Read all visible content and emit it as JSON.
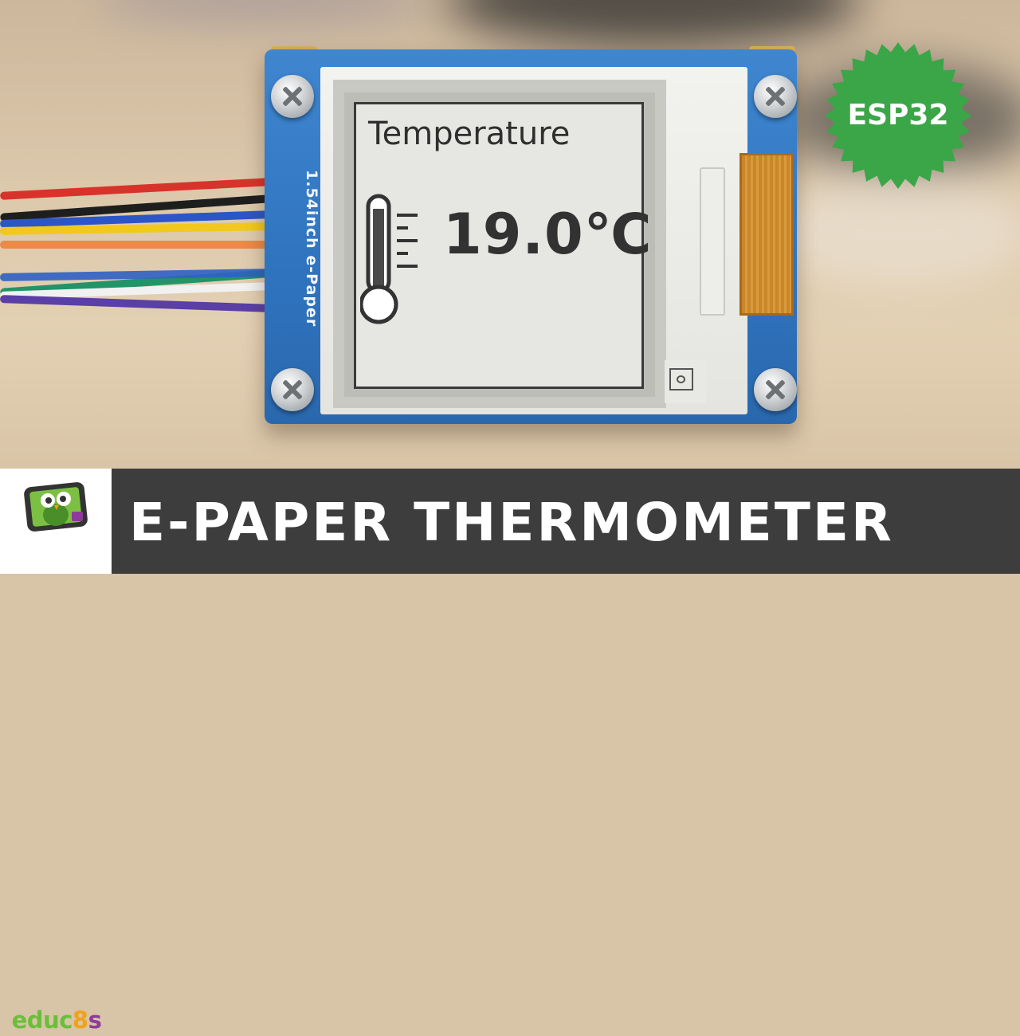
{
  "module": {
    "label": "1.54inch  e-Paper"
  },
  "display": {
    "title": "Temperature",
    "temperature": "19.0℃"
  },
  "badge": {
    "label": "ESP32",
    "color": "#3aa647"
  },
  "logo": {
    "parts": [
      {
        "text": "educ",
        "color": "#6abf3a"
      },
      {
        "text": "8",
        "color": "#f0a21b"
      },
      {
        "text": "s",
        "color": "#8e3a9a"
      }
    ]
  },
  "banner": {
    "title": "E-PAPER THERMOMETER",
    "background": "#3d3d3d"
  },
  "icons": {
    "thermometer": "thermometer-icon",
    "owl": "owl-tablet-icon"
  }
}
